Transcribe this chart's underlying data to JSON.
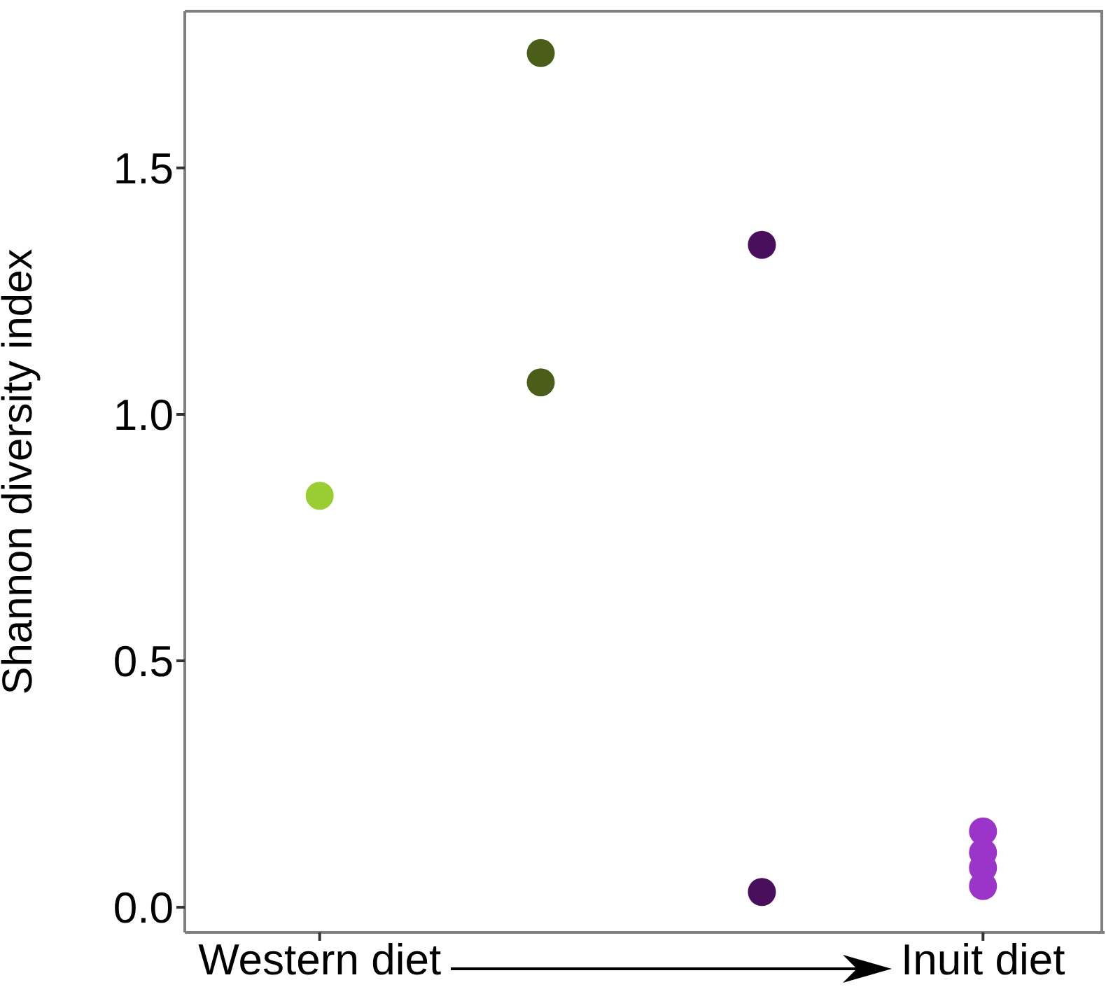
{
  "chart_data": {
    "type": "scatter",
    "ylabel": "Shannon diversity index",
    "categories": [
      "Western diet",
      null,
      null,
      "Inuit diet"
    ],
    "ylim": [
      -0.051,
      1.818
    ],
    "yticks": [
      {
        "value": 0,
        "label": "0.0"
      },
      {
        "value": 0.5,
        "label": "0.5"
      },
      {
        "value": 1,
        "label": "1.0"
      },
      {
        "value": 1.5,
        "label": "1.5"
      }
    ],
    "grid": false,
    "marker": "circle",
    "series": [
      {
        "colors": [
          "#9acd32",
          "#4a5e1a",
          "#490f5c",
          "#9b35c9"
        ],
        "values": [
          0.835,
          1.733,
          1.344,
          0.154
        ]
      },
      {
        "colors": [
          null,
          "#4a5e1a",
          "#490f5c",
          "#9b35c9"
        ],
        "values": [
          null,
          1.065,
          0.031,
          0.111
        ]
      },
      {
        "colors": [
          null,
          null,
          null,
          "#9b35c9"
        ],
        "values": [
          null,
          null,
          null,
          0.08
        ]
      },
      {
        "colors": [
          null,
          null,
          null,
          "#9b35c9"
        ],
        "values": [
          null,
          null,
          null,
          0.043
        ]
      }
    ]
  }
}
